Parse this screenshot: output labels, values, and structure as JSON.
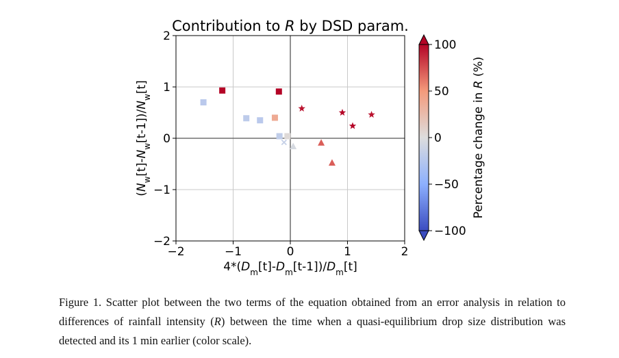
{
  "chart_data": {
    "type": "scatter",
    "title_parts": [
      "Contribution to ",
      "R",
      " by DSD param."
    ],
    "xlabel_parts": [
      {
        "t": "4*(",
        "it": false
      },
      {
        "t": "D",
        "it": true
      },
      {
        "t": "m",
        "sub": true
      },
      {
        "t": "[t]-",
        "it": false
      },
      {
        "t": "D",
        "it": true
      },
      {
        "t": "m",
        "sub": true
      },
      {
        "t": "[t-1])/",
        "it": false
      },
      {
        "t": "D",
        "it": true
      },
      {
        "t": "m",
        "sub": true
      },
      {
        "t": "[t]",
        "it": false
      }
    ],
    "ylabel_parts": [
      {
        "t": "(",
        "it": false
      },
      {
        "t": "N",
        "it": true
      },
      {
        "t": "w",
        "sub": true
      },
      {
        "t": "[t]-",
        "it": false
      },
      {
        "t": "N",
        "it": true
      },
      {
        "t": "w",
        "sub": true
      },
      {
        "t": "[t-1])/",
        "it": false
      },
      {
        "t": "N",
        "it": true
      },
      {
        "t": "w",
        "sub": true
      },
      {
        "t": "[t]",
        "it": false
      }
    ],
    "xlim": [
      -2,
      2
    ],
    "ylim": [
      -2,
      2
    ],
    "xticks": [
      -2,
      -1,
      0,
      1,
      2
    ],
    "yticks": [
      -2,
      -1,
      0,
      1,
      2
    ],
    "xtick_labels": [
      "−2",
      "−1",
      "0",
      "1",
      "2"
    ],
    "ytick_labels": [
      "−2",
      "−1",
      "0",
      "1",
      "2"
    ],
    "grid": true,
    "colorbar": {
      "label_parts": [
        "Percentage change in ",
        "R",
        " (%)"
      ],
      "range": [
        -100,
        100
      ],
      "ticks": [
        100,
        50,
        0,
        -50,
        -100
      ],
      "tick_labels": [
        "100",
        "50",
        "0",
        "−50",
        "−100"
      ],
      "colormap": "coolwarm",
      "extend": "both"
    },
    "points": [
      {
        "x": -1.52,
        "y": 0.7,
        "c": -22,
        "marker": "square"
      },
      {
        "x": -1.19,
        "y": 0.93,
        "c": 100,
        "marker": "square"
      },
      {
        "x": -0.77,
        "y": 0.39,
        "c": -20,
        "marker": "square"
      },
      {
        "x": -0.53,
        "y": 0.35,
        "c": -22,
        "marker": "square"
      },
      {
        "x": -0.27,
        "y": 0.4,
        "c": 38,
        "marker": "square"
      },
      {
        "x": -0.2,
        "y": 0.91,
        "c": 100,
        "marker": "square"
      },
      {
        "x": -0.19,
        "y": 0.04,
        "c": -18,
        "marker": "square"
      },
      {
        "x": -0.05,
        "y": 0.04,
        "c": 3,
        "marker": "square"
      },
      {
        "x": -0.11,
        "y": -0.08,
        "c": -15,
        "marker": "x"
      },
      {
        "x": 0.05,
        "y": -0.16,
        "c": -5,
        "marker": "triangle"
      },
      {
        "x": 0.2,
        "y": 0.58,
        "c": 95,
        "marker": "star"
      },
      {
        "x": 0.54,
        "y": -0.09,
        "c": 70,
        "marker": "triangle"
      },
      {
        "x": 0.73,
        "y": -0.48,
        "c": 70,
        "marker": "triangle"
      },
      {
        "x": 0.91,
        "y": 0.5,
        "c": 100,
        "marker": "star"
      },
      {
        "x": 1.09,
        "y": 0.24,
        "c": 100,
        "marker": "star"
      },
      {
        "x": 1.42,
        "y": 0.46,
        "c": 95,
        "marker": "star"
      }
    ]
  },
  "caption": {
    "part1": "Figure 1. Scatter plot between the two terms of the equation obtained from an error analysis in relation to differences of rainfall intensity (",
    "italic": "R",
    "part2": ") between the time when a quasi-equilibrium drop size distribution was detected and its 1 min earlier (color scale)."
  }
}
